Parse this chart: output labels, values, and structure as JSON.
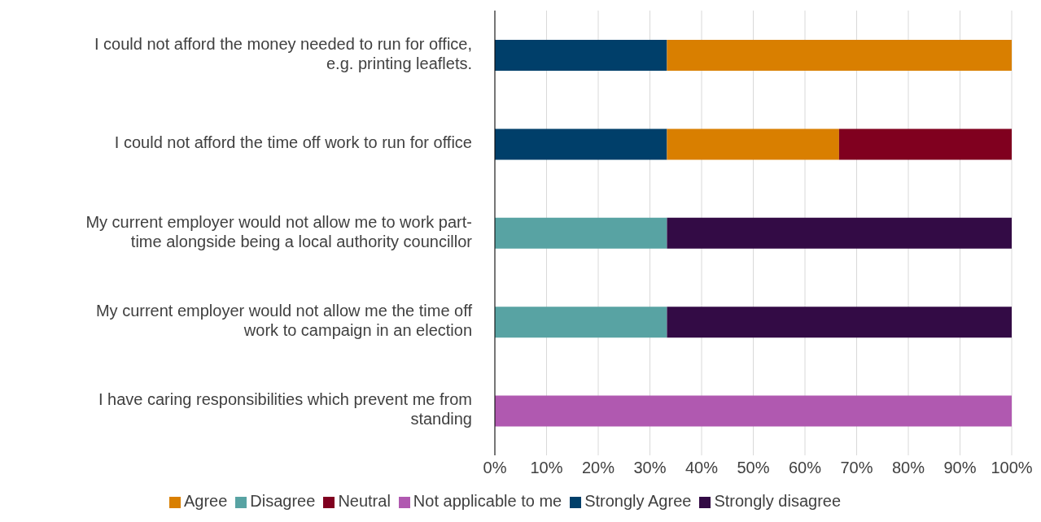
{
  "chart_data": {
    "type": "bar",
    "orientation": "horizontal",
    "stacked": true,
    "categories": [
      "I could not afford the money needed to run for office, e.g. printing leaflets.",
      "I could not afford the time off work to run for office",
      "My current employer would not allow me to work part-time alongside being a local authority councillor",
      "My current employer would not allow me the time off work to campaign in an election",
      "I have caring responsibilities which prevent me from standing"
    ],
    "series": [
      {
        "name": "Strongly Agree",
        "color": "#003f6a",
        "values": [
          33.3,
          33.3,
          null,
          null,
          null
        ]
      },
      {
        "name": "Agree",
        "color": "#d97f00",
        "values": [
          66.7,
          33.3,
          null,
          null,
          null
        ]
      },
      {
        "name": "Neutral",
        "color": "#80001f",
        "values": [
          null,
          33.4,
          null,
          null,
          null
        ]
      },
      {
        "name": "Disagree",
        "color": "#58a3a3",
        "values": [
          null,
          null,
          33.3,
          33.3,
          null
        ]
      },
      {
        "name": "Strongly disagree",
        "color": "#330b45",
        "values": [
          null,
          null,
          66.7,
          66.7,
          null
        ]
      },
      {
        "name": "Not applicable to me",
        "color": "#b059b0",
        "values": [
          null,
          null,
          null,
          null,
          100
        ]
      }
    ],
    "xlim": [
      0,
      100
    ],
    "xticks": [
      {
        "value": 0,
        "label": "0%"
      },
      {
        "value": 10,
        "label": "10%"
      },
      {
        "value": 20,
        "label": "20%"
      },
      {
        "value": 30,
        "label": "30%"
      },
      {
        "value": 40,
        "label": "40%"
      },
      {
        "value": 50,
        "label": "50%"
      },
      {
        "value": 60,
        "label": "60%"
      },
      {
        "value": 70,
        "label": "70%"
      },
      {
        "value": 80,
        "label": "80%"
      },
      {
        "value": 90,
        "label": "90%"
      },
      {
        "value": 100,
        "label": "100%"
      }
    ],
    "grid": "x",
    "legend": "bottom"
  }
}
